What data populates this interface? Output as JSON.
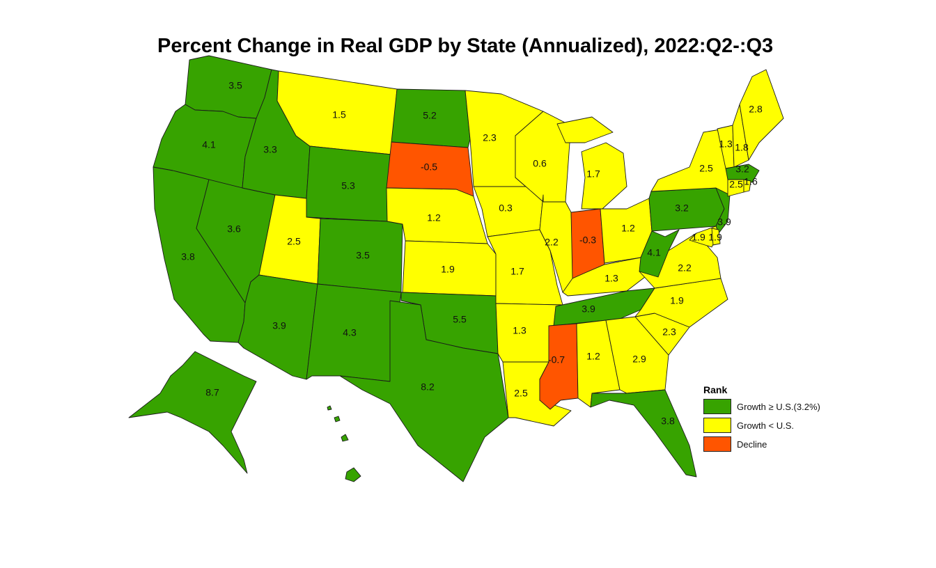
{
  "title": "Percent Change in Real GDP by State (Annualized), 2022:Q2-:Q3",
  "colors": {
    "growth_ge_us": "#37a300",
    "growth_lt_us": "#ffff00",
    "decline": "#ff5500"
  },
  "legend": {
    "title": "Rank",
    "items": [
      {
        "key": "growth_ge_us",
        "label": "Growth ≥ U.S.(3.2%)"
      },
      {
        "key": "growth_lt_us",
        "label": "Growth < U.S."
      },
      {
        "key": "decline",
        "label": "Decline"
      }
    ]
  },
  "states": [
    {
      "code": "WA",
      "value": "3.5",
      "class": "growth_ge_us"
    },
    {
      "code": "OR",
      "value": "4.1",
      "class": "growth_ge_us"
    },
    {
      "code": "CA",
      "value": "3.8",
      "class": "growth_ge_us"
    },
    {
      "code": "NV",
      "value": "3.6",
      "class": "growth_ge_us"
    },
    {
      "code": "ID",
      "value": "3.3",
      "class": "growth_ge_us"
    },
    {
      "code": "MT",
      "value": "1.5",
      "class": "growth_lt_us"
    },
    {
      "code": "WY",
      "value": "5.3",
      "class": "growth_ge_us"
    },
    {
      "code": "UT",
      "value": "2.5",
      "class": "growth_lt_us"
    },
    {
      "code": "AZ",
      "value": "3.9",
      "class": "growth_ge_us"
    },
    {
      "code": "CO",
      "value": "3.5",
      "class": "growth_ge_us"
    },
    {
      "code": "NM",
      "value": "4.3",
      "class": "growth_ge_us"
    },
    {
      "code": "ND",
      "value": "5.2",
      "class": "growth_ge_us"
    },
    {
      "code": "SD",
      "value": "-0.5",
      "class": "decline"
    },
    {
      "code": "NE",
      "value": "1.2",
      "class": "growth_lt_us"
    },
    {
      "code": "KS",
      "value": "1.9",
      "class": "growth_lt_us"
    },
    {
      "code": "OK",
      "value": "5.5",
      "class": "growth_ge_us"
    },
    {
      "code": "TX",
      "value": "8.2",
      "class": "growth_ge_us"
    },
    {
      "code": "MN",
      "value": "2.3",
      "class": "growth_lt_us"
    },
    {
      "code": "IA",
      "value": "0.3",
      "class": "growth_lt_us"
    },
    {
      "code": "MO",
      "value": "1.7",
      "class": "growth_lt_us"
    },
    {
      "code": "AR",
      "value": "1.3",
      "class": "growth_lt_us"
    },
    {
      "code": "LA",
      "value": "2.5",
      "class": "growth_lt_us"
    },
    {
      "code": "WI",
      "value": "0.6",
      "class": "growth_lt_us"
    },
    {
      "code": "IL",
      "value": "2.2",
      "class": "growth_lt_us"
    },
    {
      "code": "MI",
      "value": "1.7",
      "class": "growth_lt_us"
    },
    {
      "code": "IN",
      "value": "-0.3",
      "class": "decline"
    },
    {
      "code": "OH",
      "value": "1.2",
      "class": "growth_lt_us"
    },
    {
      "code": "KY",
      "value": "1.3",
      "class": "growth_lt_us"
    },
    {
      "code": "TN",
      "value": "3.9",
      "class": "growth_ge_us"
    },
    {
      "code": "MS",
      "value": "-0.7",
      "class": "decline"
    },
    {
      "code": "AL",
      "value": "1.2",
      "class": "growth_lt_us"
    },
    {
      "code": "GA",
      "value": "2.9",
      "class": "growth_lt_us"
    },
    {
      "code": "FL",
      "value": "3.8",
      "class": "growth_ge_us"
    },
    {
      "code": "SC",
      "value": "2.3",
      "class": "growth_lt_us"
    },
    {
      "code": "NC",
      "value": "1.9",
      "class": "growth_lt_us"
    },
    {
      "code": "VA",
      "value": "2.2",
      "class": "growth_lt_us"
    },
    {
      "code": "WV",
      "value": "4.1",
      "class": "growth_ge_us"
    },
    {
      "code": "PA",
      "value": "3.2",
      "class": "growth_ge_us"
    },
    {
      "code": "NY",
      "value": "2.5",
      "class": "growth_lt_us"
    },
    {
      "code": "NJ",
      "value": "3.9",
      "class": "growth_ge_us"
    },
    {
      "code": "MD",
      "value": "1.9",
      "class": "growth_lt_us"
    },
    {
      "code": "DE",
      "value": "1.9",
      "class": "growth_lt_us"
    },
    {
      "code": "VT",
      "value": "1.3",
      "class": "growth_lt_us"
    },
    {
      "code": "NH",
      "value": "1.8",
      "class": "growth_lt_us"
    },
    {
      "code": "ME",
      "value": "2.8",
      "class": "growth_lt_us"
    },
    {
      "code": "MA",
      "value": "3.2",
      "class": "growth_ge_us"
    },
    {
      "code": "CT",
      "value": "2.5",
      "class": "growth_lt_us"
    },
    {
      "code": "RI",
      "value": "1.6",
      "class": "growth_lt_us"
    },
    {
      "code": "AK",
      "value": "8.7",
      "class": "growth_ge_us"
    },
    {
      "code": "HI",
      "value": "",
      "class": "growth_ge_us"
    }
  ]
}
